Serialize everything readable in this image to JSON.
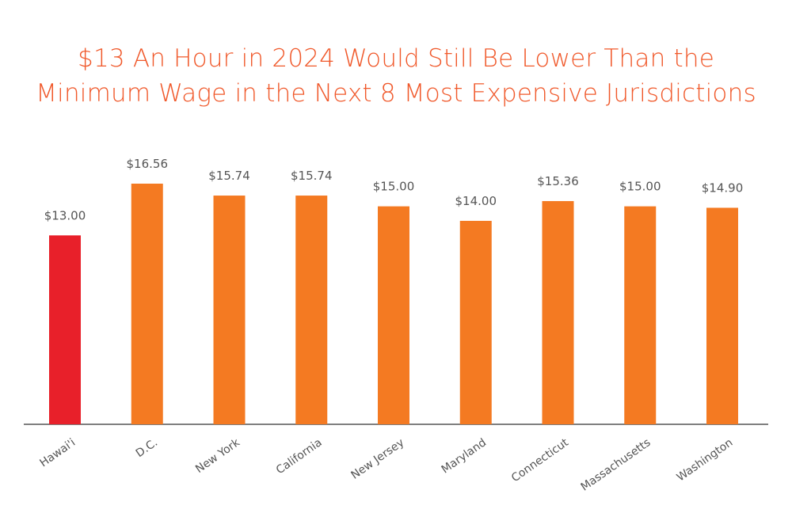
{
  "chart_data": {
    "type": "bar",
    "title_lines": [
      "$13 An Hour in 2024 Would Still Be Lower Than the",
      "Minimum Wage in the Next 8 Most Expensive Jurisdictions"
    ],
    "categories": [
      "Hawai'i",
      "D.C.",
      "New York",
      "California",
      "New Jersey",
      "Maryland",
      "Connecticut",
      "Massachusetts",
      "Washington"
    ],
    "values": [
      13.0,
      16.56,
      15.74,
      15.74,
      15.0,
      14.0,
      15.36,
      15.0,
      14.9
    ],
    "value_labels": [
      "$13.00",
      "$16.56",
      "$15.74",
      "$15.74",
      "$15.00",
      "$14.00",
      "$15.36",
      "$15.00",
      "$14.90"
    ],
    "highlight_index": 0,
    "colors": {
      "highlight": "#e8202a",
      "bar": "#f47a22",
      "title": "#f0582a",
      "axis": "#555555"
    },
    "xlabel": "",
    "ylabel": "",
    "ylim": [
      0,
      16.56
    ],
    "grid": false,
    "legend": "none"
  }
}
